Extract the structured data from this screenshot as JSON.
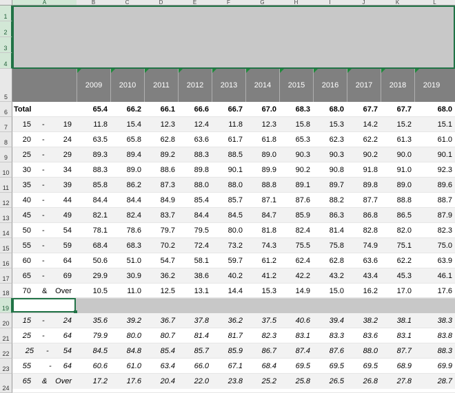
{
  "column_headers": [
    "A",
    "B",
    "C",
    "D",
    "E",
    "F",
    "G",
    "H",
    "I",
    "J",
    "K",
    "L"
  ],
  "row_numbers": [
    "1",
    "2",
    "3",
    "4",
    "5",
    "6",
    "7",
    "8",
    "9",
    "10",
    "11",
    "12",
    "13",
    "14",
    "15",
    "16",
    "17",
    "18",
    "19",
    "20",
    "21",
    "22",
    "23",
    "24"
  ],
  "years": [
    "2009",
    "2010",
    "2011",
    "2012",
    "2013",
    "2014",
    "2015",
    "2016",
    "2017",
    "2018",
    "2019"
  ],
  "total": {
    "label": "Total",
    "values": [
      "65.4",
      "66.2",
      "66.1",
      "66.6",
      "66.7",
      "67.0",
      "68.3",
      "68.0",
      "67.7",
      "67.7",
      "68.0"
    ]
  },
  "age_rows": [
    {
      "from": "15",
      "sep": "-",
      "to": "19",
      "values": [
        "11.8",
        "15.4",
        "12.3",
        "12.4",
        "11.8",
        "12.3",
        "15.8",
        "15.3",
        "14.2",
        "15.2",
        "15.1"
      ]
    },
    {
      "from": "20",
      "sep": "-",
      "to": "24",
      "values": [
        "63.5",
        "65.8",
        "62.8",
        "63.6",
        "61.7",
        "61.8",
        "65.3",
        "62.3",
        "62.2",
        "61.3",
        "61.0"
      ]
    },
    {
      "from": "25",
      "sep": "-",
      "to": "29",
      "values": [
        "89.3",
        "89.4",
        "89.2",
        "88.3",
        "88.5",
        "89.0",
        "90.3",
        "90.3",
        "90.2",
        "90.0",
        "90.1"
      ]
    },
    {
      "from": "30",
      "sep": "-",
      "to": "34",
      "values": [
        "88.3",
        "89.0",
        "88.6",
        "89.8",
        "90.1",
        "89.9",
        "90.2",
        "90.8",
        "91.8",
        "91.0",
        "92.3"
      ]
    },
    {
      "from": "35",
      "sep": "-",
      "to": "39",
      "values": [
        "85.8",
        "86.2",
        "87.3",
        "88.0",
        "88.0",
        "88.8",
        "89.1",
        "89.7",
        "89.8",
        "89.0",
        "89.6"
      ]
    },
    {
      "from": "40",
      "sep": "-",
      "to": "44",
      "values": [
        "84.4",
        "84.4",
        "84.9",
        "85.4",
        "85.7",
        "87.1",
        "87.6",
        "88.2",
        "87.7",
        "88.8",
        "88.7"
      ]
    },
    {
      "from": "45",
      "sep": "-",
      "to": "49",
      "values": [
        "82.1",
        "82.4",
        "83.7",
        "84.4",
        "84.5",
        "84.7",
        "85.9",
        "86.3",
        "86.8",
        "86.5",
        "87.9"
      ]
    },
    {
      "from": "50",
      "sep": "-",
      "to": "54",
      "values": [
        "78.1",
        "78.6",
        "79.7",
        "79.5",
        "80.0",
        "81.8",
        "82.4",
        "81.4",
        "82.8",
        "82.0",
        "82.3"
      ]
    },
    {
      "from": "55",
      "sep": "-",
      "to": "59",
      "values": [
        "68.4",
        "68.3",
        "70.2",
        "72.4",
        "73.2",
        "74.3",
        "75.5",
        "75.8",
        "74.9",
        "75.1",
        "75.0"
      ]
    },
    {
      "from": "60",
      "sep": "-",
      "to": "64",
      "values": [
        "50.6",
        "51.0",
        "54.7",
        "58.1",
        "59.7",
        "61.2",
        "62.4",
        "62.8",
        "63.6",
        "62.2",
        "63.9"
      ]
    },
    {
      "from": "65",
      "sep": "-",
      "to": "69",
      "values": [
        "29.9",
        "30.9",
        "36.2",
        "38.6",
        "40.2",
        "41.2",
        "42.2",
        "43.2",
        "43.4",
        "45.3",
        "46.1"
      ]
    },
    {
      "from": "70",
      "sep": "&",
      "to": "Over",
      "values": [
        "10.5",
        "11.0",
        "12.5",
        "13.1",
        "14.4",
        "15.3",
        "14.9",
        "15.0",
        "16.2",
        "17.0",
        "17.6"
      ]
    }
  ],
  "group_rows": [
    {
      "from": "15",
      "sep": "-",
      "to": "24",
      "values": [
        "35.6",
        "39.2",
        "36.7",
        "37.8",
        "36.2",
        "37.5",
        "40.6",
        "39.4",
        "38.2",
        "38.1",
        "38.3"
      ]
    },
    {
      "from": "25",
      "sep": "-",
      "to": "64",
      "values": [
        "79.9",
        "80.0",
        "80.7",
        "81.4",
        "81.7",
        "82.3",
        "83.1",
        "83.3",
        "83.6",
        "83.1",
        "83.8"
      ]
    },
    {
      "from": "25",
      "sep": "-",
      "to": "54",
      "values": [
        "84.5",
        "84.8",
        "85.4",
        "85.7",
        "85.9",
        "86.7",
        "87.4",
        "87.6",
        "88.0",
        "87.7",
        "88.3"
      ]
    },
    {
      "from": "55",
      "sep": "-",
      "to": "64",
      "values": [
        "60.6",
        "61.0",
        "63.4",
        "66.0",
        "67.1",
        "68.4",
        "69.5",
        "69.5",
        "69.5",
        "68.9",
        "69.9"
      ]
    },
    {
      "from": "65",
      "sep": "&",
      "to": "Over",
      "values": [
        "17.2",
        "17.6",
        "20.4",
        "22.0",
        "23.8",
        "25.2",
        "25.8",
        "26.5",
        "26.8",
        "27.8",
        "28.7"
      ]
    }
  ],
  "colors": {
    "accent": "#217346",
    "header_fill": "#808080",
    "band_fill": "#c8c8c8"
  }
}
